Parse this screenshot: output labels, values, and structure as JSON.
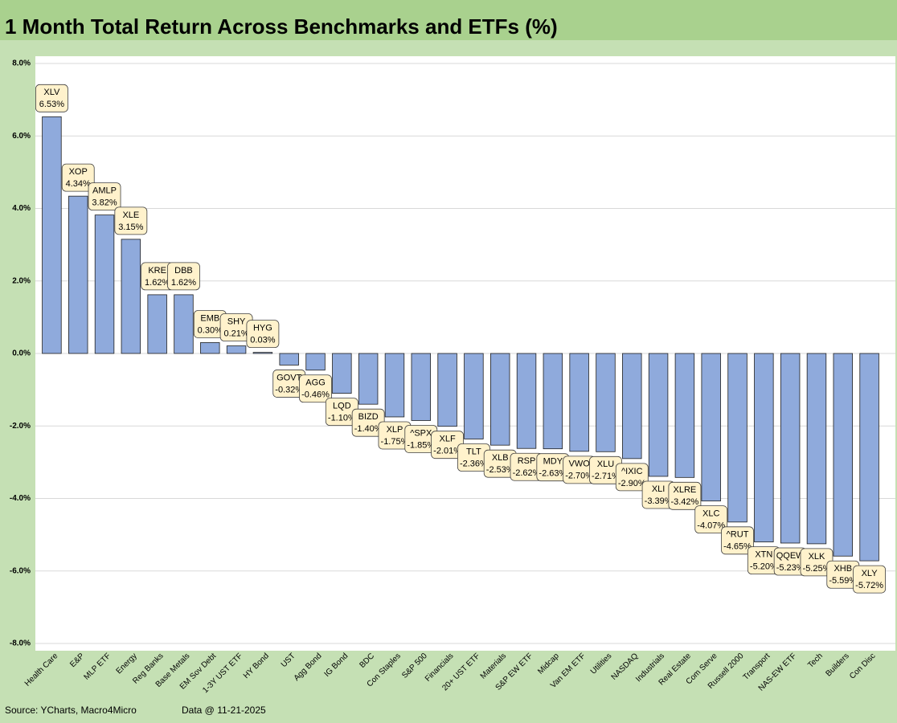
{
  "chart_data": {
    "type": "bar",
    "title": "1 Month Total Return Across Benchmarks and ETFs (%)",
    "categories": [
      "Health Care",
      "E&P",
      "MLP ETF",
      "Energy",
      "Reg Banks",
      "Base Metals",
      "EM Sov Debt",
      "1-3Y UST ETF",
      "HY Bond",
      "UST",
      "Agg Bond",
      "IG Bond",
      "BDC",
      "Con Staples",
      "S&P 500",
      "Financials",
      "20+ UST ETF",
      "Materials",
      "S&P EW ETF",
      "Midcap",
      "Van EM ETF",
      "Utilities",
      "NASDAQ",
      "Industrials",
      "Real Estate",
      "Com Serve",
      "Russell 2000",
      "Transport",
      "NAS-EW ETF",
      "Tech",
      "Builders",
      "Con Disc"
    ],
    "tickers": [
      "XLV",
      "XOP",
      "AMLP",
      "XLE",
      "KRE",
      "DBB",
      "EMB",
      "SHY",
      "HYG",
      "GOVT",
      "AGG",
      "LQD",
      "BIZD",
      "XLP",
      "^SPX",
      "XLF",
      "TLT",
      "XLB",
      "RSP",
      "MDY",
      "VWO",
      "XLU",
      "^IXIC",
      "XLI",
      "XLRE",
      "XLC",
      "^RUT",
      "XTN",
      "QQEW",
      "XLK",
      "XHB",
      "XLY"
    ],
    "values": [
      6.53,
      4.34,
      3.82,
      3.15,
      1.62,
      1.62,
      0.3,
      0.21,
      0.03,
      -0.32,
      -0.46,
      -1.1,
      -1.4,
      -1.75,
      -1.85,
      -2.01,
      -2.36,
      -2.53,
      -2.62,
      -2.63,
      -2.7,
      -2.71,
      -2.9,
      -3.39,
      -3.42,
      -4.07,
      -4.65,
      -5.2,
      -5.23,
      -5.25,
      -5.59,
      -5.72
    ],
    "value_labels": [
      "6.53%",
      "4.34%",
      "3.82%",
      "3.15%",
      "1.62%",
      "1.62%",
      "0.30%",
      "0.21%",
      "0.03%",
      "-0.32%",
      "-0.46%",
      "-1.10%",
      "-1.40%",
      "-1.75%",
      "-1.85%",
      "-2.01%",
      "-2.36%",
      "-2.53%",
      "-2.62%",
      "-2.63%",
      "-2.70%",
      "-2.71%",
      "-2.90%",
      "-3.39%",
      "-3.42%",
      "-4.07%",
      "-4.65%",
      "-5.20%",
      "-5.23%",
      "-5.25%",
      "-5.59%",
      "-5.72%"
    ],
    "color": "#8faadc",
    "ylim": [
      -8,
      8
    ],
    "yticks": [
      {
        "value": -8,
        "label": "-8.0%"
      },
      {
        "value": -6,
        "label": "-6.0%"
      },
      {
        "value": -4,
        "label": "-4.0%"
      },
      {
        "value": -2,
        "label": "-2.0%"
      },
      {
        "value": 0,
        "label": "0.0%"
      },
      {
        "value": 2,
        "label": "2.0%"
      },
      {
        "value": 4,
        "label": "4.0%"
      },
      {
        "value": 6,
        "label": "6.0%"
      },
      {
        "value": 8,
        "label": "8.0%"
      }
    ],
    "grid": true,
    "source": "Source: YCharts, Macro4Micro",
    "data_date": "Data @ 11-21-2025"
  }
}
